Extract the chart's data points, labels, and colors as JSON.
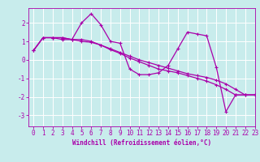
{
  "title": "",
  "xlabel": "Windchill (Refroidissement éolien,°C)",
  "xlim": [
    -0.5,
    23
  ],
  "ylim": [
    -3.6,
    2.8
  ],
  "yticks": [
    -3,
    -2,
    -1,
    0,
    1,
    2
  ],
  "xticks": [
    0,
    1,
    2,
    3,
    4,
    5,
    6,
    7,
    8,
    9,
    10,
    11,
    12,
    13,
    14,
    15,
    16,
    17,
    18,
    19,
    20,
    21,
    22,
    23
  ],
  "background_color": "#c8ecec",
  "grid_color": "#ffffff",
  "line_color": "#aa00aa",
  "series": [
    [
      0.5,
      1.2,
      1.2,
      1.2,
      1.1,
      2.0,
      2.5,
      1.9,
      1.0,
      0.9,
      -0.5,
      -0.8,
      -0.8,
      -0.7,
      -0.3,
      0.6,
      1.5,
      1.4,
      1.3,
      -0.4,
      -2.8,
      -1.9,
      -1.9,
      -1.9
    ],
    [
      0.5,
      1.2,
      1.2,
      1.2,
      1.1,
      1.1,
      1.0,
      0.8,
      0.6,
      0.4,
      0.2,
      0.0,
      -0.15,
      -0.3,
      -0.45,
      -0.6,
      -0.75,
      -0.85,
      -0.95,
      -1.1,
      -1.3,
      -1.6,
      -1.9,
      -1.9
    ],
    [
      0.5,
      1.2,
      1.2,
      1.1,
      1.1,
      1.0,
      0.95,
      0.8,
      0.55,
      0.35,
      0.1,
      -0.1,
      -0.3,
      -0.5,
      -0.6,
      -0.7,
      -0.85,
      -1.0,
      -1.15,
      -1.35,
      -1.6,
      -1.9,
      -1.9,
      -1.9
    ]
  ],
  "figsize": [
    3.2,
    2.0
  ],
  "dpi": 100,
  "tick_fontsize": 5.5,
  "xlabel_fontsize": 5.5,
  "linewidth": 0.9,
  "markersize": 3.0
}
